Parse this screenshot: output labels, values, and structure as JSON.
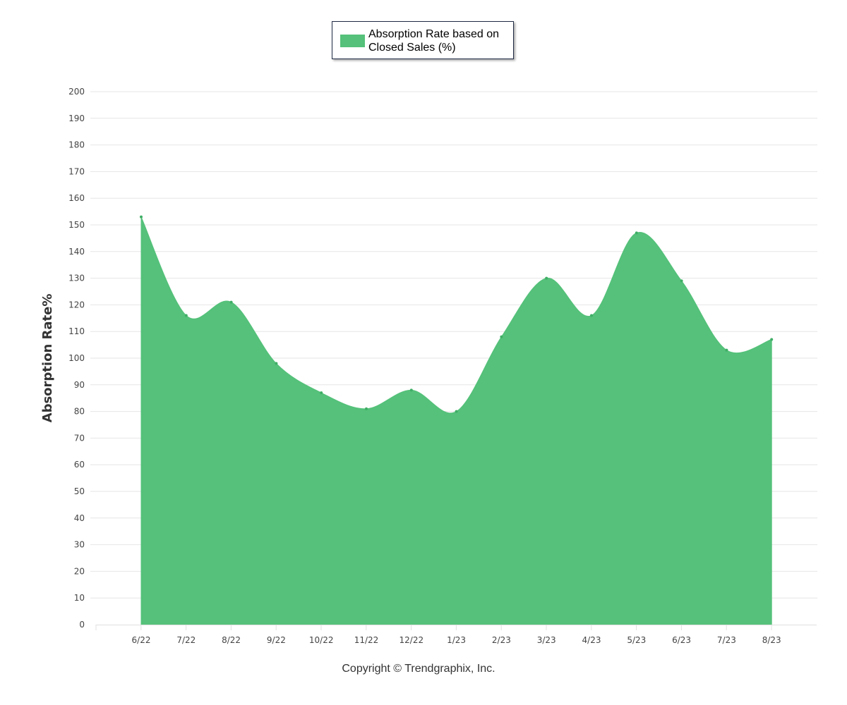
{
  "chart_data": {
    "type": "area",
    "title": "",
    "xlabel": "",
    "ylabel": "Absorption Rate%",
    "ylim": [
      0,
      200
    ],
    "yticks": [
      0,
      10,
      20,
      30,
      40,
      50,
      60,
      70,
      80,
      90,
      100,
      110,
      120,
      130,
      140,
      150,
      160,
      170,
      180,
      190,
      200
    ],
    "categories": [
      "6/22",
      "7/22",
      "8/22",
      "9/22",
      "10/22",
      "11/22",
      "12/22",
      "1/23",
      "2/23",
      "3/23",
      "4/23",
      "5/23",
      "6/23",
      "7/23",
      "8/23"
    ],
    "series": [
      {
        "name": "Absorption Rate based on Closed Sales (%)",
        "values": [
          153,
          116,
          121,
          98,
          87,
          81,
          88,
          80,
          108,
          130,
          116,
          147,
          129,
          103,
          107
        ],
        "color": "#55c17a"
      }
    ],
    "grid": true,
    "legend_position": "top-center"
  },
  "footer": {
    "copyright": "Copyright © Trendgraphix, Inc."
  }
}
